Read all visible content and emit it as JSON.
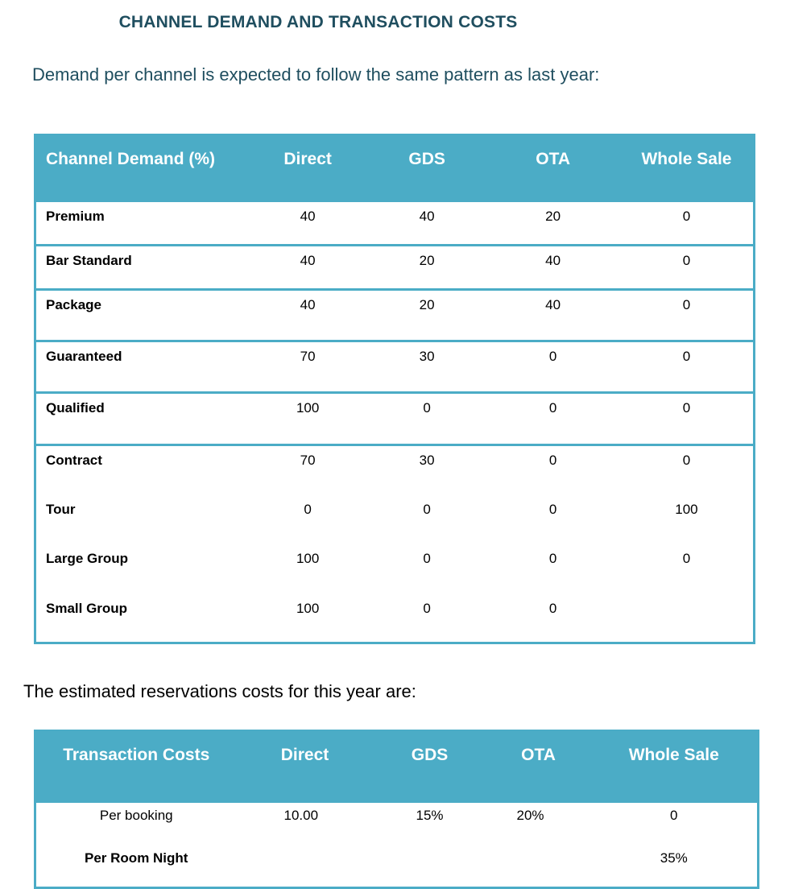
{
  "title": "CHANNEL DEMAND AND TRANSACTION COSTS",
  "intro": "Demand per channel is expected to follow the same pattern as last year:",
  "demand_table": {
    "headers": [
      "Channel Demand (%)",
      "Direct",
      "GDS",
      "OTA",
      "Whole Sale"
    ],
    "rows": [
      {
        "label": "Premium",
        "values": [
          "40",
          "40",
          "20",
          "0"
        ]
      },
      {
        "label": "Bar Standard",
        "values": [
          "40",
          "20",
          "40",
          "0"
        ]
      },
      {
        "label": "Package",
        "values": [
          "40",
          "20",
          "40",
          "0"
        ]
      },
      {
        "label": "Guaranteed",
        "values": [
          "70",
          "30",
          "0",
          "0"
        ]
      },
      {
        "label": "Qualified",
        "values": [
          "100",
          "0",
          "0",
          "0"
        ]
      },
      {
        "label": "Contract",
        "values": [
          "70",
          "30",
          "0",
          "0"
        ]
      },
      {
        "label": "Tour",
        "values": [
          "0",
          "0",
          "0",
          "100"
        ]
      },
      {
        "label": "Large Group",
        "values": [
          "100",
          "0",
          "0",
          "0"
        ]
      },
      {
        "label": "Small Group",
        "values": [
          "100",
          "0",
          "0",
          ""
        ]
      }
    ]
  },
  "costs_intro": "The estimated reservations costs for this year are:",
  "costs_table": {
    "headers": [
      "Transaction Costs",
      "Direct",
      "GDS",
      "OTA",
      "Whole Sale"
    ],
    "rows": [
      {
        "label": "Per booking",
        "values": [
          "10.00",
          "15%",
          "20%",
          "0"
        ]
      },
      {
        "label": "Per Room Night",
        "values": [
          "",
          "",
          "",
          "35%"
        ]
      }
    ]
  }
}
